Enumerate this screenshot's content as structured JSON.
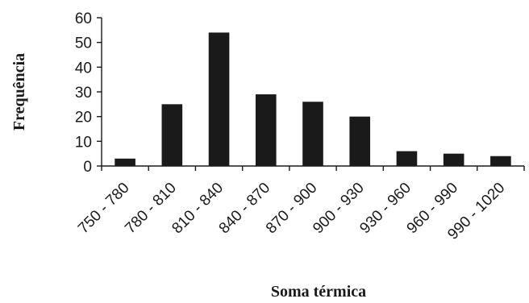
{
  "chart_data": {
    "type": "bar",
    "title": "",
    "xlabel": "Soma térmica",
    "ylabel": "Frequência",
    "categories": [
      "750 - 780",
      "780 - 810",
      "810 - 840",
      "840 - 870",
      "870 - 900",
      "900 - 930",
      "930 - 960",
      "960 - 990",
      "990 - 1020"
    ],
    "values": [
      3,
      25,
      54,
      29,
      26,
      20,
      6,
      5,
      4
    ],
    "ylim": [
      0,
      60
    ],
    "yticks": [
      "0",
      "10",
      "20",
      "30",
      "40",
      "50",
      "60"
    ],
    "grid": false,
    "legend": "none",
    "colors": {
      "bar": "#1a1a1a",
      "axis": "#1a1a1a"
    }
  }
}
